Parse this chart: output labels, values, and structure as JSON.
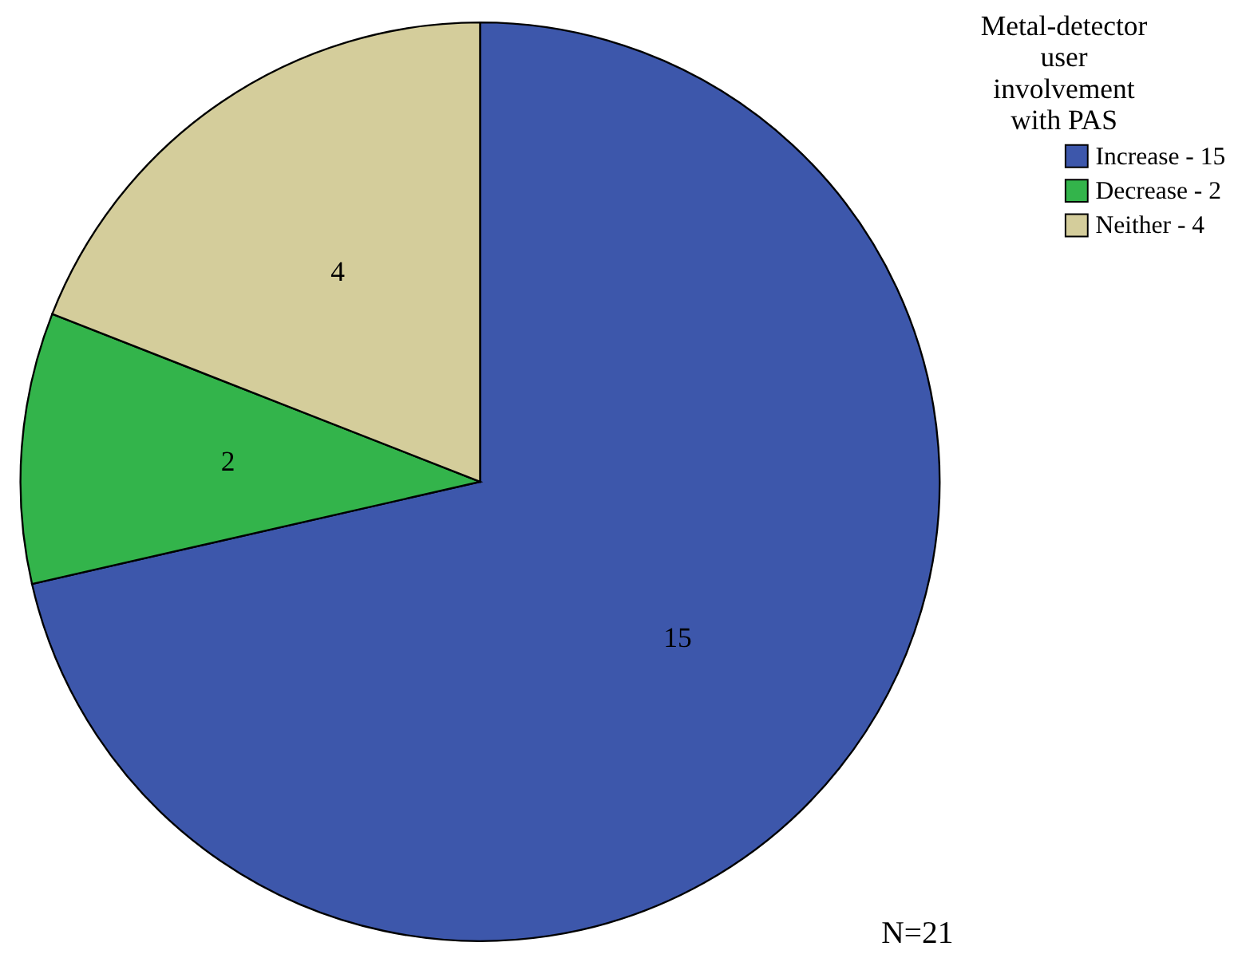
{
  "chart_data": {
    "type": "pie",
    "legend_title": "Metal-detector user involvement with PAS",
    "categories": [
      "Increase - 15",
      "Decrease - 2",
      "Neither - 4"
    ],
    "values": [
      15,
      2,
      4
    ],
    "colors": [
      "#3d57ab",
      "#33b44b",
      "#d4cd9b"
    ],
    "data_labels": true,
    "legend": "top right",
    "annotations": [
      "N=21"
    ]
  }
}
